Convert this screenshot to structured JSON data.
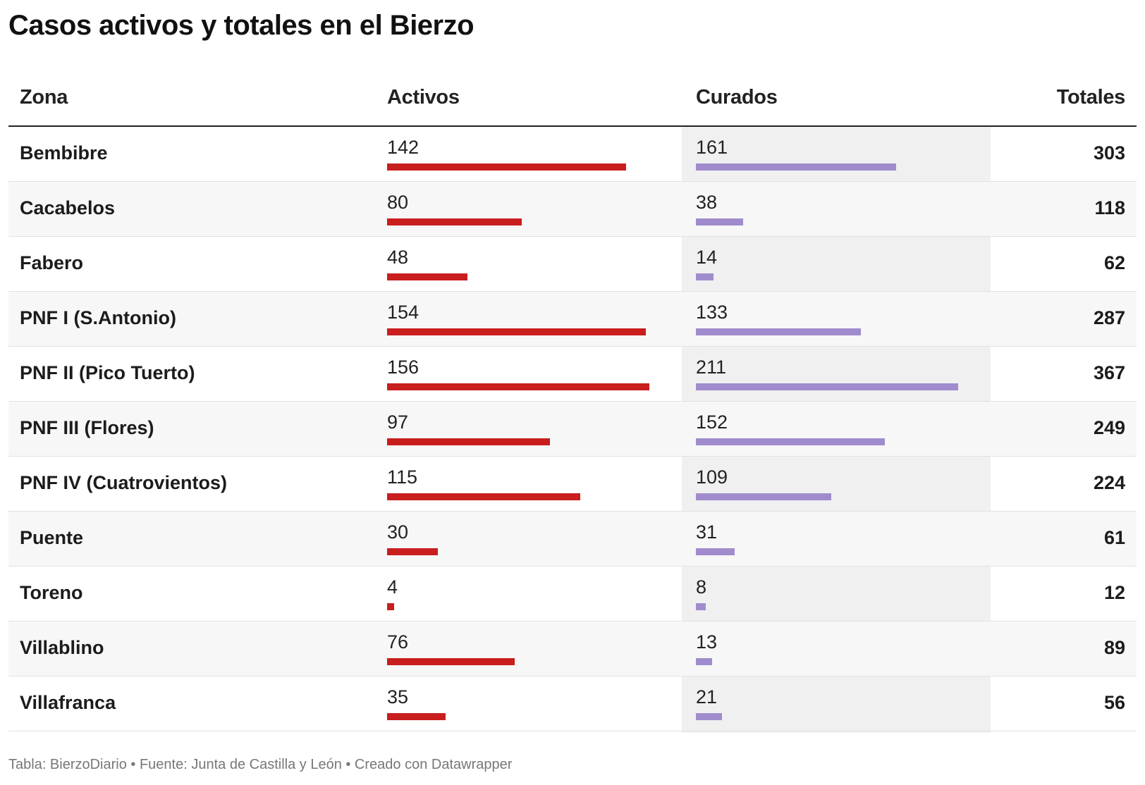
{
  "title": "Casos activos y totales en el Bierzo",
  "footer": "Tabla: BierzoDiario • Fuente: Junta de Castilla y León • Creado con Datawrapper",
  "colors": {
    "activos": "#c81e1e",
    "curados": "#a08ccc"
  },
  "chart_data": {
    "type": "table",
    "title": "Casos activos y totales en el Bierzo",
    "columns": [
      "Zona",
      "Activos",
      "Curados",
      "Totales"
    ],
    "activos_max": 156,
    "curados_max": 211,
    "rows": [
      {
        "zona": "Bembibre",
        "activos": 142,
        "curados": 161,
        "totales": 303
      },
      {
        "zona": "Cacabelos",
        "activos": 80,
        "curados": 38,
        "totales": 118
      },
      {
        "zona": "Fabero",
        "activos": 48,
        "curados": 14,
        "totales": 62
      },
      {
        "zona": "PNF I (S.Antonio)",
        "activos": 154,
        "curados": 133,
        "totales": 287
      },
      {
        "zona": "PNF II (Pico Tuerto)",
        "activos": 156,
        "curados": 211,
        "totales": 367
      },
      {
        "zona": "PNF III (Flores)",
        "activos": 97,
        "curados": 152,
        "totales": 249
      },
      {
        "zona": "PNF IV (Cuatrovientos)",
        "activos": 115,
        "curados": 109,
        "totales": 224
      },
      {
        "zona": "Puente",
        "activos": 30,
        "curados": 31,
        "totales": 61
      },
      {
        "zona": "Toreno",
        "activos": 4,
        "curados": 8,
        "totales": 12
      },
      {
        "zona": "Villablino",
        "activos": 76,
        "curados": 13,
        "totales": 89
      },
      {
        "zona": "Villafranca",
        "activos": 35,
        "curados": 21,
        "totales": 56
      }
    ]
  }
}
